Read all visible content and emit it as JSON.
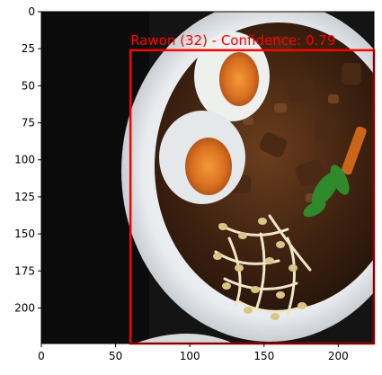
{
  "chart_data": {
    "type": "image",
    "title": "",
    "xlabel": "",
    "ylabel": "",
    "xlim": [
      0,
      224
    ],
    "ylim": [
      224,
      0
    ],
    "xticks": [
      0,
      50,
      100,
      150,
      200
    ],
    "yticks": [
      0,
      25,
      50,
      75,
      100,
      125,
      150,
      175,
      200
    ],
    "image_subject": "bowl of rawon (black beef soup) with salted egg halves, bean sprouts and greens on a dark background",
    "detections": [
      {
        "label": "Rawon (32) - Confidence: 0.79",
        "box": {
          "x_min": 60,
          "y_min": 26,
          "x_max": 224,
          "y_max": 224
        },
        "color": "#ff0000"
      }
    ]
  }
}
